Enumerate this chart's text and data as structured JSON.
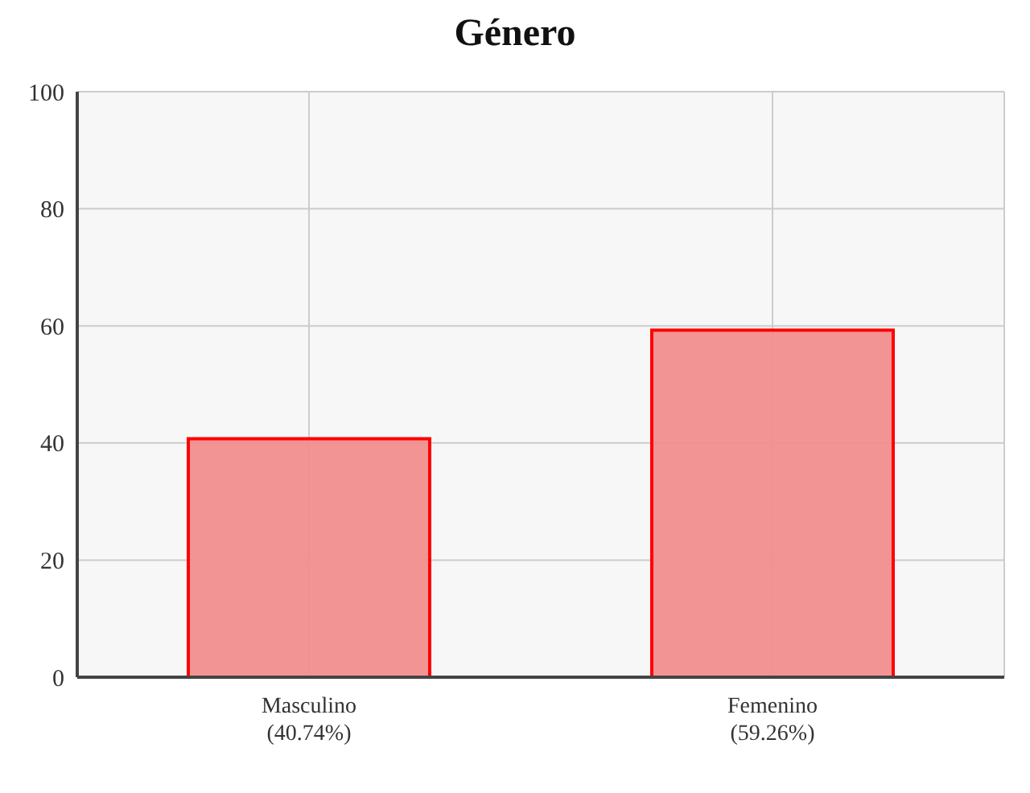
{
  "chart_data": {
    "type": "bar",
    "title": "Género",
    "categories": [
      "Masculino\n(40.74%)",
      "Femenino\n(59.26%)"
    ],
    "values": [
      40.74,
      59.26
    ],
    "color": "#f28e8e",
    "ylim": [
      0,
      100
    ],
    "yticks": [
      0,
      20,
      40,
      60,
      80,
      100
    ],
    "grid": true
  }
}
